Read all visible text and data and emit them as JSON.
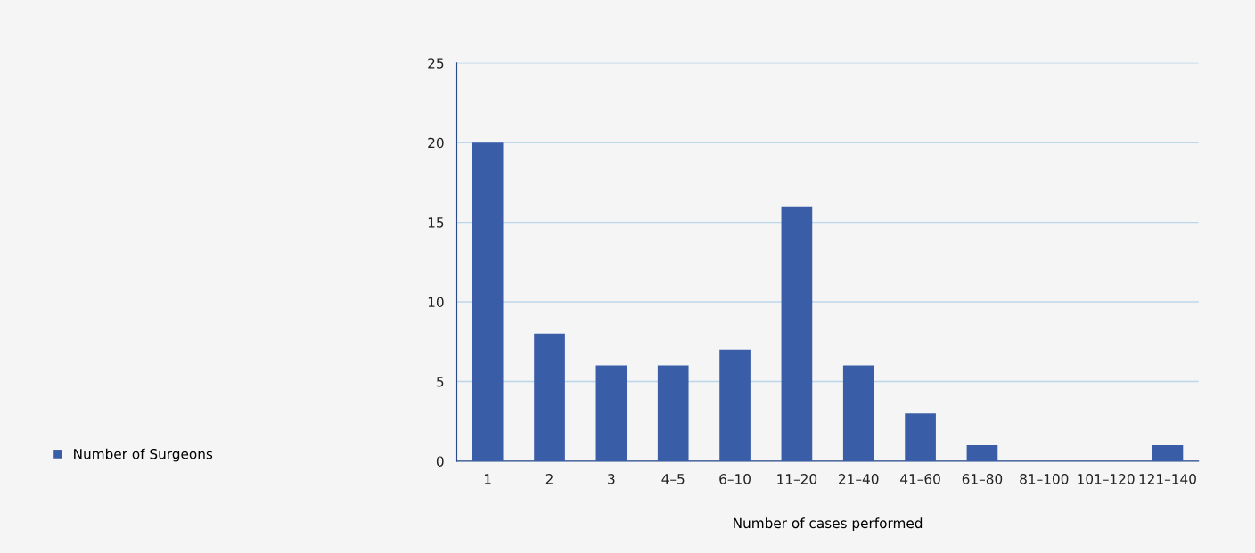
{
  "chart_data": {
    "type": "bar",
    "categories": [
      "1",
      "2",
      "3",
      "4–5",
      "6–10",
      "11–20",
      "21–40",
      "41–60",
      "61–80",
      "81–100",
      "101–120",
      "121–140"
    ],
    "series": [
      {
        "name": "Number of Surgeons",
        "color": "#3a5da8",
        "values": [
          20,
          8,
          6,
          6,
          7,
          16,
          6,
          3,
          1,
          0,
          0,
          1
        ]
      }
    ],
    "xlabel": "Number of cases performed",
    "ylim": [
      0,
      25
    ],
    "yticks": [
      0,
      5,
      10,
      15,
      20,
      25
    ],
    "grid": "y",
    "legend": "left"
  }
}
